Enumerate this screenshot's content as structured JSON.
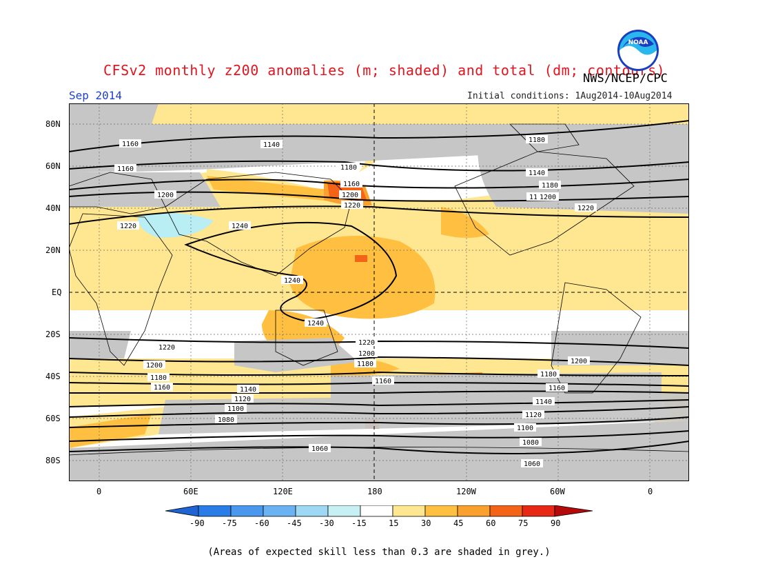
{
  "header": {
    "title": "CFSv2 monthly z200 anomalies (m; shaded) and total (dm; contours)",
    "month": "Sep 2014",
    "agency": "NWS/NCEP/CPC",
    "initial_conditions": "Initial conditions: 1Aug2014-10Aug2014",
    "logo_text": "NOAA"
  },
  "axes": {
    "lat_labels": [
      "80N",
      "60N",
      "40N",
      "20N",
      "EQ",
      "20S",
      "40S",
      "60S",
      "80S"
    ],
    "lon_labels": [
      "0",
      "60E",
      "120E",
      "180",
      "120W",
      "60W",
      "0"
    ]
  },
  "contours": {
    "labels": [
      "1160",
      "1140",
      "1180",
      "1160",
      "1180",
      "1140",
      "1160",
      "1200",
      "1180",
      "1200",
      "1180",
      "1220",
      "1200",
      "1220",
      "1240",
      "1220",
      "1240",
      "1240",
      "1220",
      "1220",
      "1200",
      "1200",
      "1200",
      "1180",
      "1180",
      "1180",
      "1160",
      "1160",
      "1160",
      "1140",
      "1140",
      "1120",
      "1120",
      "1100",
      "1100",
      "1080",
      "1080",
      "1060",
      "1060"
    ]
  },
  "colorbar": {
    "labels": [
      "-90",
      "-75",
      "-60",
      "-45",
      "-30",
      "-15",
      "15",
      "30",
      "45",
      "60",
      "75",
      "90"
    ],
    "colors": [
      "#1e64d2",
      "#2a7de6",
      "#4a98ee",
      "#6ab2f2",
      "#9fd8f4",
      "#c6f0f4",
      "#ffffff",
      "#ffe690",
      "#ffc042",
      "#f9a02e",
      "#f46418",
      "#e62814",
      "#b40a0a"
    ]
  },
  "footnote": "(Areas of expected skill less than 0.3 are shaded in grey.)",
  "colors": {
    "title": "#e0141e",
    "month": "#2040d0",
    "grey_low_skill": "#c6c6c6",
    "anomaly_15_30": "#ffe690",
    "anomaly_30_45": "#ffc042",
    "anomaly_45_60": "#f9a02e",
    "anomaly_60_75": "#f46418",
    "anomaly_neg_15_30": "#b8eef4"
  }
}
